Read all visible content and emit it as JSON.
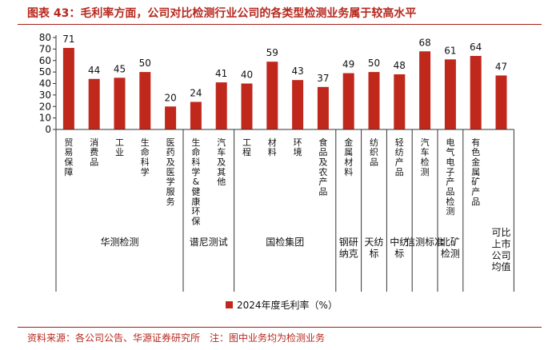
{
  "title": "图表 43：毛利率方面，公司对比检测行业公司的各类型检测业务属于较高水平",
  "source": "资料来源：各公司公告、华源证券研究所　注：图中业务均为检测业务",
  "colors": {
    "bar": "#c0281c",
    "title": "#b7281e",
    "axis": "#333333"
  },
  "chart_data": {
    "type": "bar",
    "ylim": [
      0,
      80
    ],
    "yticks": [
      0,
      10,
      20,
      30,
      40,
      50,
      60,
      70,
      80
    ],
    "legend_position": "bottom-center",
    "grid": false,
    "series": [
      {
        "name": "2024年度毛利率（%）",
        "values": [
          71,
          44,
          45,
          50,
          20,
          24,
          41,
          40,
          59,
          43,
          37,
          49,
          50,
          48,
          68,
          61,
          64,
          47
        ]
      }
    ],
    "categories": [
      "贸易保障",
      "消费品",
      "工业",
      "生命科学",
      "医药及医学服务",
      "生命科学&健康环保",
      "汽车及其他",
      "工程",
      "材料",
      "环境",
      "食品及农产品",
      "金属材料",
      "纺织品",
      "轻纺产品",
      "汽车检测",
      "电气电子产品检测",
      "有色金属矿产品",
      ""
    ],
    "groups": [
      {
        "label": "华测检测",
        "start": 0,
        "end": 4
      },
      {
        "label": "谱尼测试",
        "start": 5,
        "end": 6
      },
      {
        "label": "国检集团",
        "start": 7,
        "end": 10
      },
      {
        "label": "钢研纳克",
        "start": 11,
        "end": 11
      },
      {
        "label": "天纺标",
        "start": 12,
        "end": 12
      },
      {
        "label": "中纺标",
        "start": 13,
        "end": 13
      },
      {
        "label": "信测标准",
        "start": 14,
        "end": 14
      },
      {
        "label": "北矿检测",
        "start": 15,
        "end": 15
      },
      {
        "label": "可比上市公司均值",
        "start": 17,
        "end": 17
      }
    ]
  }
}
